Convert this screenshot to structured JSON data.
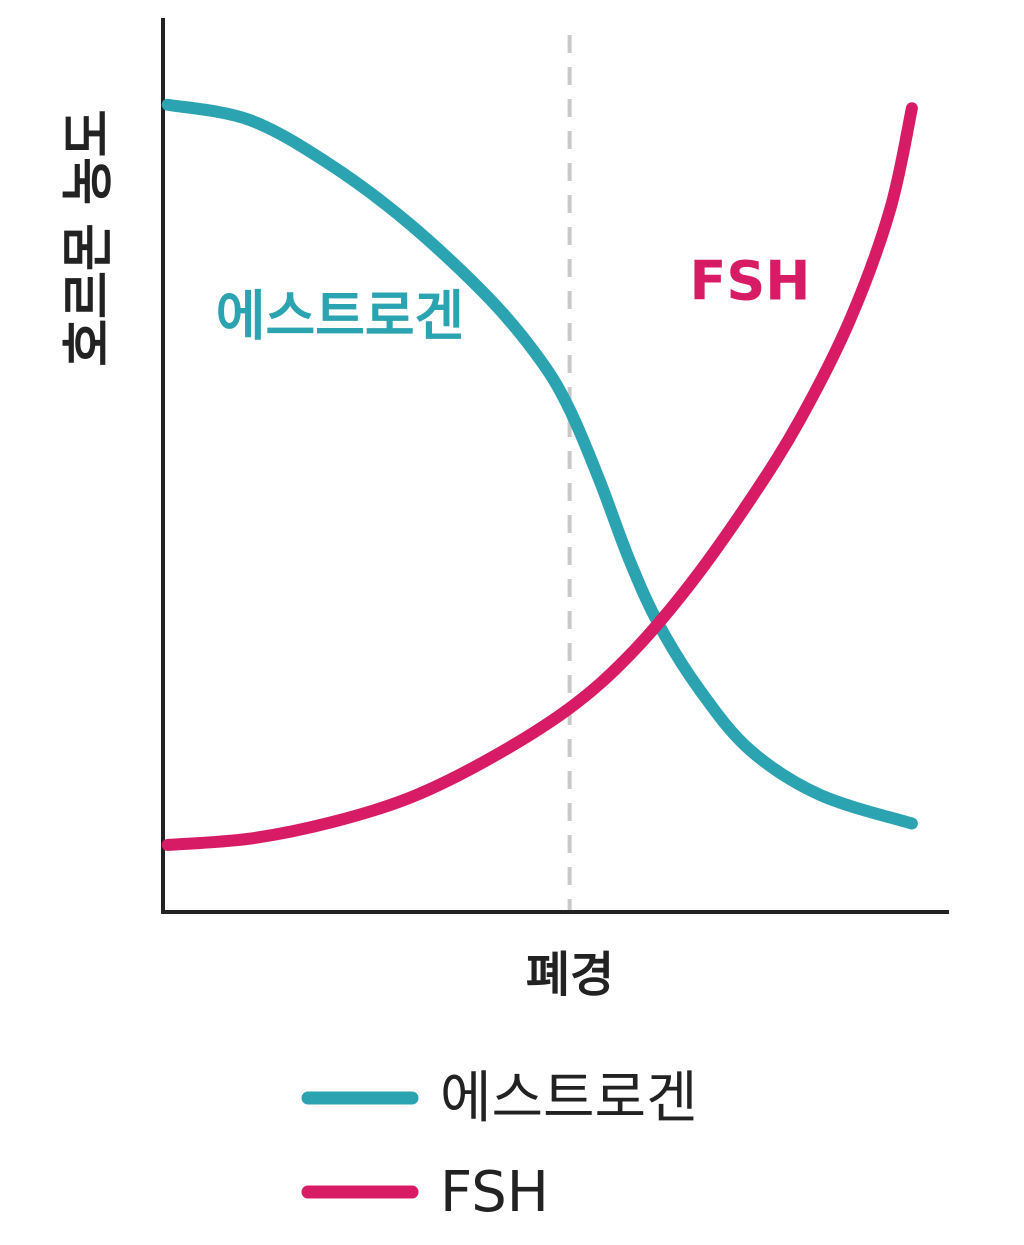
{
  "chart_data": {
    "type": "line",
    "y_label": "호르몬 농도",
    "x_label": "폐경",
    "vline": 51.8,
    "xlim": [
      0,
      100
    ],
    "ylim": [
      0,
      100
    ],
    "series": [
      {
        "name": "에스트로겐",
        "color": "#2ba3b0",
        "x": [
          0.6,
          11,
          21.3,
          31.5,
          41.7,
          48.1,
          51.8,
          55.6,
          59.4,
          63.2,
          68.4,
          74.8,
          83.7,
          95.4
        ],
        "values": [
          90.3,
          88.6,
          83.6,
          76.9,
          68.5,
          61.7,
          56.2,
          48.3,
          39.4,
          32.1,
          24.8,
          18.1,
          13.1,
          9.9
        ]
      },
      {
        "name": "FSH",
        "color": "#d81b65",
        "x": [
          0.6,
          11,
          21.3,
          31.5,
          41.7,
          51.8,
          59.4,
          67.1,
          74.8,
          81.1,
          87.5,
          92.6,
          95.4
        ],
        "values": [
          7.5,
          8.2,
          10,
          12.8,
          17.2,
          22.8,
          28.7,
          36.6,
          46.1,
          55,
          66.2,
          78.5,
          89.9
        ]
      }
    ]
  }
}
